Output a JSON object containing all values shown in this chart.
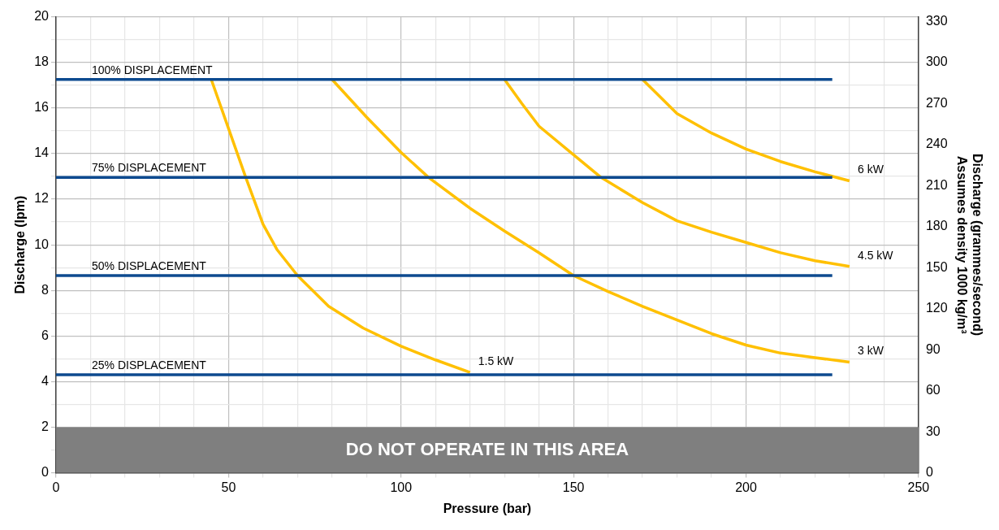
{
  "chart_data": {
    "type": "line",
    "xlabel": "Pressure (bar)",
    "ylabel": "Discharge (lpm)",
    "y2label": "Discharge (grammes/second)\nAssumes density 1000 kg/m³",
    "xlim": [
      0,
      250
    ],
    "xticks": [
      0,
      {
        "value": 10,
        "label": null
      },
      {
        "value": 20,
        "label": null
      },
      {
        "value": 30,
        "label": null
      },
      {
        "value": 40,
        "label": null
      },
      50,
      {
        "value": 60,
        "label": null
      },
      {
        "value": 70,
        "label": null
      },
      {
        "value": 80,
        "label": null
      },
      {
        "value": 90,
        "label": null
      },
      100,
      {
        "value": 110,
        "label": null
      },
      {
        "value": 120,
        "label": null
      },
      {
        "value": 130,
        "label": null
      },
      {
        "value": 140,
        "label": null
      },
      150,
      {
        "value": 160,
        "label": null
      },
      {
        "value": 170,
        "label": null
      },
      {
        "value": 180,
        "label": null
      },
      {
        "value": 190,
        "label": null
      },
      200,
      {
        "value": 210,
        "label": null
      },
      {
        "value": 220,
        "label": null
      },
      {
        "value": 230,
        "label": null
      },
      {
        "value": 240,
        "label": null
      },
      250
    ],
    "ylim": [
      0,
      20
    ],
    "yticks": [
      0,
      {
        "value": 1,
        "label": null
      },
      2,
      {
        "value": 3,
        "label": null
      },
      4,
      {
        "value": 5,
        "label": null
      },
      6,
      {
        "value": 7,
        "label": null
      },
      8,
      {
        "value": 9,
        "label": null
      },
      10,
      {
        "value": 11,
        "label": null
      },
      12,
      {
        "value": 13,
        "label": null
      },
      14,
      {
        "value": 15,
        "label": null
      },
      16,
      {
        "value": 17,
        "label": null
      },
      18,
      {
        "value": 19,
        "label": null
      },
      20
    ],
    "y2lim": [
      0,
      333.3
    ],
    "y2ticks": [
      0,
      30,
      60,
      90,
      120,
      150,
      180,
      210,
      240,
      270,
      300,
      330
    ],
    "grid": true,
    "legend": false,
    "marker": "none",
    "line_style": "solid",
    "bands": [
      {
        "axis": "y",
        "from": 0,
        "to": 2,
        "label": "DO NOT OPERATE IN THIS AREA",
        "color": "#7f7f7f"
      }
    ],
    "series": [
      {
        "name": "100% DISPLACEMENT",
        "color": "#0d4a8f",
        "x": [
          0,
          225
        ],
        "values": [
          17.25,
          17.25
        ]
      },
      {
        "name": "75% DISPLACEMENT",
        "color": "#0d4a8f",
        "x": [
          0,
          225
        ],
        "values": [
          12.95,
          12.95
        ]
      },
      {
        "name": "50% DISPLACEMENT",
        "color": "#0d4a8f",
        "x": [
          0,
          225
        ],
        "values": [
          8.65,
          8.65
        ]
      },
      {
        "name": "25% DISPLACEMENT",
        "color": "#0d4a8f",
        "x": [
          0,
          225
        ],
        "values": [
          4.3,
          4.3
        ]
      },
      {
        "name": "1.5 kW",
        "color": "#ffc000",
        "x": [
          45,
          50,
          55,
          60,
          64,
          70,
          79,
          89,
          100,
          110,
          120
        ],
        "values": [
          17.25,
          15.1,
          12.95,
          10.9,
          9.8,
          8.65,
          7.3,
          6.35,
          5.55,
          4.95,
          4.4
        ]
      },
      {
        "name": "3 kW",
        "color": "#ffc000",
        "x": [
          80,
          90,
          100,
          108,
          120,
          130,
          140,
          150,
          160,
          170,
          180,
          190,
          200,
          210,
          220,
          230
        ],
        "values": [
          17.25,
          15.6,
          14.05,
          12.95,
          11.6,
          10.6,
          9.65,
          8.65,
          7.95,
          7.3,
          6.7,
          6.1,
          5.6,
          5.25,
          5.05,
          4.85
        ]
      },
      {
        "name": "4.5 kW",
        "color": "#ffc000",
        "x": [
          130,
          135,
          140,
          150,
          158,
          170,
          180,
          190,
          200,
          210,
          220,
          230
        ],
        "values": [
          17.25,
          16.2,
          15.2,
          13.95,
          12.95,
          11.85,
          11.05,
          10.55,
          10.1,
          9.65,
          9.3,
          9.05
        ]
      },
      {
        "name": "6 kW",
        "color": "#ffc000",
        "x": [
          170,
          180,
          190,
          200,
          210,
          220,
          230
        ],
        "values": [
          17.25,
          15.75,
          14.9,
          14.2,
          13.65,
          13.2,
          12.8
        ]
      }
    ]
  }
}
